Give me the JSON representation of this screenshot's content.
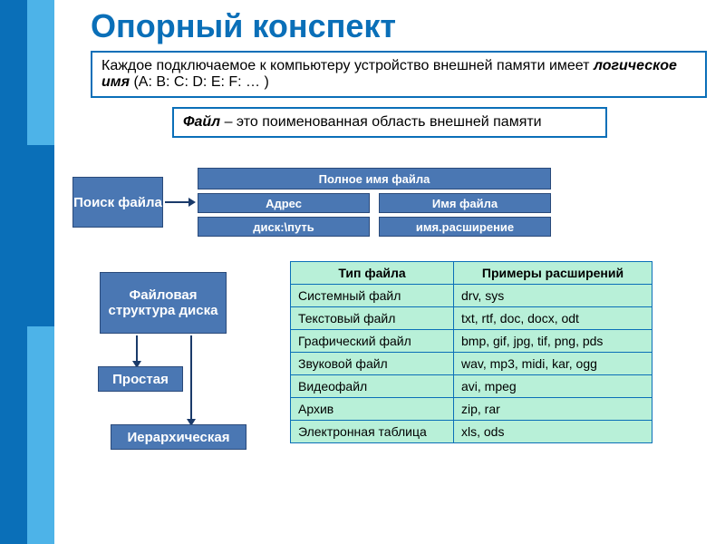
{
  "title": "Опорный конспект",
  "def1_a": "Каждое подключаемое к компьютеру устройство внешней памяти имеет",
  "def1_b": "логическое имя",
  "def1_c": " (A: B: C: D: E: F: … )",
  "def2_a": "Файл",
  "def2_b": " – это поименованная область внешней памяти",
  "search_box": "Поиск файла",
  "fullname": "Полное имя файла",
  "addr": "Адрес",
  "fname": "Имя файла",
  "path": "диск:\\путь",
  "ext": "имя.расширение",
  "fs_struct": "Файловая структура диска",
  "simple": "Простая",
  "hier": "Иерархическая",
  "table": {
    "h1": "Тип файла",
    "h2": "Примеры расширений",
    "rows": [
      [
        "Системный файл",
        "drv, sys"
      ],
      [
        "Текстовый файл",
        "txt, rtf, doc, docx, odt"
      ],
      [
        "Графический файл",
        "bmp, gif, jpg, tif, png, pds"
      ],
      [
        "Звуковой файл",
        "wav, mp3, midi, kar, ogg"
      ],
      [
        "Видеофайл",
        "avi, mpeg"
      ],
      [
        "Архив",
        "zip, rar"
      ],
      [
        "Электронная таблица",
        "xls, ods"
      ]
    ]
  },
  "colors": {
    "primary": "#0a6fb8",
    "box": "#4a77b3",
    "table_bg": "#b8f0d8"
  }
}
